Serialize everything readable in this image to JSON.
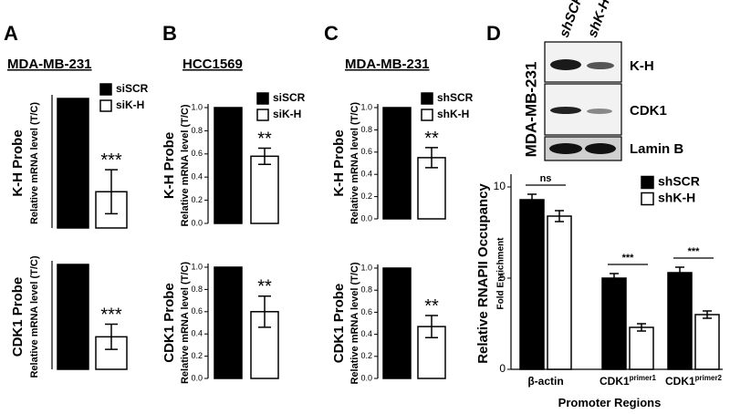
{
  "chart_data": [
    {
      "type": "bar",
      "panel": "A",
      "title": "MDA-MB-231",
      "ylabel": "K-H Probe",
      "ylabel_sub": "Relative mRNA level (T/C)",
      "ylim": [
        0,
        1.0
      ],
      "series": [
        {
          "name": "siSCR",
          "color": "#000000",
          "values": [
            1.0
          ]
        },
        {
          "name": "siK-H",
          "color": "#ffffff",
          "values": [
            0.28
          ],
          "errors": [
            0.17
          ]
        }
      ],
      "annotations": [
        "***"
      ]
    },
    {
      "type": "bar",
      "ylabel": "CDK1 Probe",
      "ylabel_sub": "Relative mRNA level (T/C)",
      "ylim": [
        0,
        1.0
      ],
      "series": [
        {
          "color": "#000000",
          "values": [
            1.0
          ]
        },
        {
          "color": "#ffffff",
          "values": [
            0.31
          ],
          "errors": [
            0.12
          ]
        }
      ],
      "annotations": [
        "***"
      ]
    },
    {
      "type": "bar",
      "panel": "B",
      "title": "HCC1569",
      "ylabel": "K-H Probe",
      "ylabel_sub": "Relative mRNA level (T/C)",
      "ylim": [
        0,
        1.0
      ],
      "yticks": [
        {
          "value": 0,
          "label": "0.0"
        },
        0.2,
        0.4,
        0.6,
        0.8,
        {
          "value": 1,
          "label": "1.0"
        }
      ],
      "series": [
        {
          "name": "siSCR",
          "color": "#000000",
          "values": [
            1.0
          ]
        },
        {
          "name": "siK-H",
          "color": "#ffffff",
          "values": [
            0.58
          ],
          "errors": [
            0.07
          ]
        }
      ],
      "annotations": [
        "**"
      ]
    },
    {
      "type": "bar",
      "ylabel": "CDK1 Probe",
      "ylabel_sub": "Relative mRNA level (T/C)",
      "ylim": [
        0,
        1.0
      ],
      "yticks": [
        {
          "value": 0,
          "label": "0.0"
        },
        0.2,
        0.4,
        0.6,
        0.8,
        {
          "value": 1,
          "label": "1.0"
        }
      ],
      "series": [
        {
          "color": "#000000",
          "values": [
            1.0
          ]
        },
        {
          "color": "#ffffff",
          "values": [
            0.6
          ],
          "errors": [
            0.14
          ]
        }
      ],
      "annotations": [
        "**"
      ]
    },
    {
      "type": "bar",
      "panel": "C",
      "title": "MDA-MB-231",
      "ylabel": "K-H Probe",
      "ylabel_sub": "Relative mRNA level (T/C)",
      "ylim": [
        0,
        1.0
      ],
      "yticks": [
        {
          "value": 0,
          "label": "0.0"
        },
        0.2,
        0.4,
        0.6,
        0.8,
        {
          "value": 1,
          "label": "1.0"
        }
      ],
      "series": [
        {
          "name": "shSCR",
          "color": "#000000",
          "values": [
            1.0
          ]
        },
        {
          "name": "shK-H",
          "color": "#ffffff",
          "values": [
            0.55
          ],
          "errors": [
            0.09
          ]
        }
      ],
      "annotations": [
        "**"
      ]
    },
    {
      "type": "bar",
      "ylabel": "CDK1 Probe",
      "ylabel_sub": "Relative mRNA level (T/C)",
      "ylim": [
        0,
        1.0
      ],
      "yticks": [
        {
          "value": 0,
          "label": "0.0"
        },
        0.2,
        0.4,
        0.6,
        0.8,
        {
          "value": 1,
          "label": "1.0"
        }
      ],
      "series": [
        {
          "color": "#000000",
          "values": [
            1.0
          ]
        },
        {
          "color": "#ffffff",
          "values": [
            0.47
          ],
          "errors": [
            0.1
          ]
        }
      ],
      "annotations": [
        "**"
      ]
    },
    {
      "type": "grouped_bar",
      "ylabel": "Relative RNAPII Occupancy",
      "ylabel_sub": "Fold Enrichment",
      "xlabel": "Promoter Regions",
      "categories": [
        "β-actin",
        "CDK1",
        "CDK1"
      ],
      "category_superscripts": [
        null,
        "primer1",
        "primer2"
      ],
      "ylim": [
        0,
        10.5
      ],
      "yticks": [
        0,
        5,
        10
      ],
      "series": [
        {
          "name": "shSCR",
          "color": "#000000",
          "values": [
            9.3,
            5.0,
            5.3
          ],
          "errors": [
            0.3,
            0.25,
            0.3
          ]
        },
        {
          "name": "shK-H",
          "color": "#ffffff",
          "values": [
            8.4,
            2.3,
            3.0
          ],
          "errors": [
            0.3,
            0.2,
            0.2
          ]
        }
      ],
      "annotations": [
        "ns",
        "***",
        "***"
      ]
    }
  ],
  "blot": {
    "panel": "D",
    "cell_line": "MDA-MB-231",
    "lanes": [
      "shSCR",
      "shK-H"
    ],
    "bands": [
      "K-H",
      "CDK1",
      "Lamin B"
    ]
  }
}
